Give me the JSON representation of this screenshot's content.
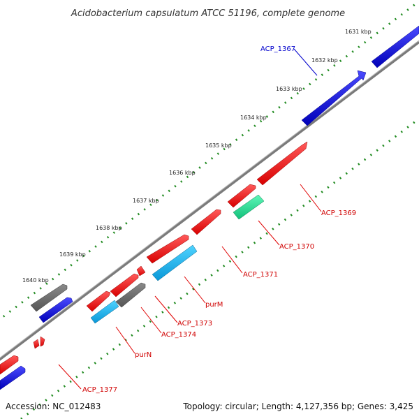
{
  "title": "Acidobacterium capsulatum ATCC 51196, complete genome",
  "footer": {
    "accession": "Accession: NC_012483",
    "summary": "Topology: circular; Length: 4,127,356 bp; Genes: 3,425"
  },
  "ticks": [
    "1631 kbp",
    "1632 kbp",
    "1633 kbp",
    "1634 kbp",
    "1635 kbp",
    "1636 kbp",
    "1637 kbp",
    "1638 kbp",
    "1639 kbp",
    "1640 kbp"
  ],
  "gene_labels": [
    "ACP_1367",
    "ACP_1369",
    "ACP_1370",
    "ACP_1371",
    "purM",
    "ACP_1373",
    "ACP_1374",
    "purN",
    "ACP_1377"
  ],
  "colors": {
    "red": "#ff1010",
    "blue": "#1010ee",
    "gray": "#707070",
    "cyan": "#16b6f0",
    "green": "#2ee69a",
    "backbone": "#7a7a7a",
    "tick": "#1f8a1f"
  }
}
